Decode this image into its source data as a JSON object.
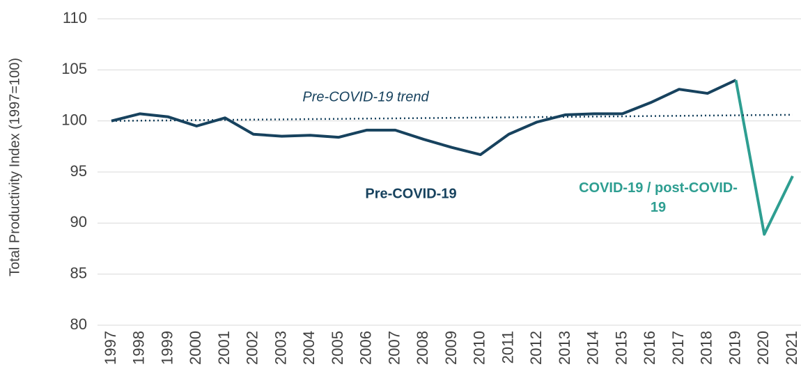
{
  "chart_data": {
    "type": "line",
    "y_label": "Total Productivity Index (1997=100)",
    "categories": [
      "1997",
      "1998",
      "1999",
      "2000",
      "2001",
      "2002",
      "2003",
      "2004",
      "2005",
      "2006",
      "2007",
      "2008",
      "2009",
      "2010",
      "2011",
      "2012",
      "2013",
      "2014",
      "2015",
      "2016",
      "2017",
      "2018",
      "2019",
      "2020",
      "2021"
    ],
    "series": [
      {
        "name": "Pre-COVID-19",
        "color": "#17425e",
        "style": "solid",
        "values": [
          100,
          100.7,
          100.4,
          99.5,
          100.3,
          98.7,
          98.5,
          98.6,
          98.4,
          99.1,
          99.1,
          98.2,
          97.4,
          96.7,
          98.7,
          99.9,
          100.6,
          100.7,
          100.7,
          101.8,
          103.1,
          102.7,
          104.0,
          null,
          null
        ]
      },
      {
        "name": "COVID-19 / post-COVID-19",
        "color": "#2e9e91",
        "style": "solid",
        "values": [
          null,
          null,
          null,
          null,
          null,
          null,
          null,
          null,
          null,
          null,
          null,
          null,
          null,
          null,
          null,
          null,
          null,
          null,
          null,
          null,
          null,
          null,
          104.0,
          88.9,
          94.6
        ]
      },
      {
        "name": "Pre-COVID-19 trend",
        "color": "#17425e",
        "style": "dotted",
        "values": [
          100,
          100.03,
          100.05,
          100.08,
          100.1,
          100.13,
          100.15,
          100.18,
          100.2,
          100.23,
          100.25,
          100.28,
          100.3,
          100.33,
          100.35,
          100.38,
          100.4,
          100.43,
          100.45,
          100.48,
          100.5,
          100.53,
          100.55,
          100.58,
          100.6
        ]
      }
    ],
    "ylim": [
      80,
      110
    ],
    "yticks": [
      80,
      85,
      90,
      95,
      100,
      105,
      110
    ],
    "grid": true
  }
}
